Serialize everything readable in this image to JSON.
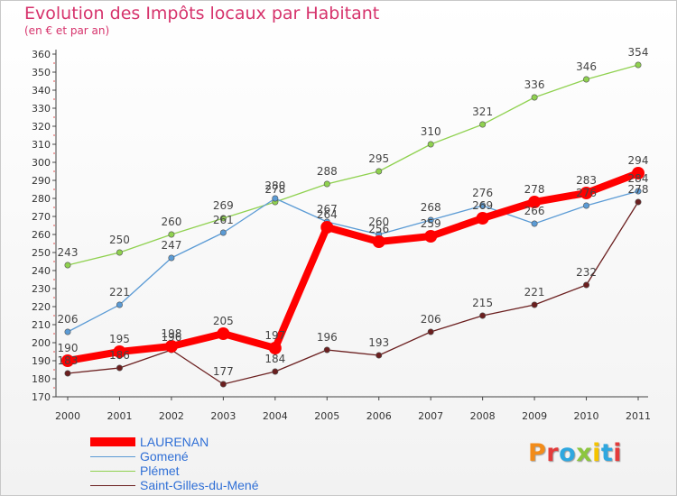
{
  "chart_data": {
    "type": "line",
    "title": "Evolution des Impôts locaux par Habitant",
    "subtitle": "(en € et par an)",
    "xlabel": "",
    "ylabel": "",
    "categories": [
      "2000",
      "2001",
      "2002",
      "2003",
      "2004",
      "2005",
      "2006",
      "2007",
      "2008",
      "2009",
      "2010",
      "2011"
    ],
    "ylim": [
      170,
      360
    ],
    "yticks": [
      170,
      180,
      190,
      200,
      210,
      220,
      230,
      240,
      250,
      260,
      270,
      280,
      290,
      300,
      310,
      320,
      330,
      340,
      350,
      360
    ],
    "grid": false,
    "legend_position": "bottom-left",
    "series": [
      {
        "name": "LAURENAN",
        "color": "#ff0000",
        "values": [
          190,
          195,
          198,
          205,
          197,
          264,
          256,
          259,
          269,
          278,
          283,
          294
        ]
      },
      {
        "name": "Gomené",
        "color": "#5b9bd5",
        "values": [
          206,
          221,
          247,
          261,
          280,
          267,
          260,
          268,
          276,
          266,
          276,
          284
        ]
      },
      {
        "name": "Plémet",
        "color": "#8fd14f",
        "values": [
          243,
          250,
          260,
          269,
          278,
          288,
          295,
          310,
          321,
          336,
          346,
          354
        ]
      },
      {
        "name": "Saint-Gilles-du-Mené",
        "color": "#6b1f1f",
        "values": [
          183,
          186,
          196,
          177,
          184,
          196,
          193,
          206,
          215,
          221,
          232,
          278
        ]
      }
    ]
  },
  "logo": {
    "letters": [
      "P",
      "r",
      "o",
      "x",
      "i",
      "t",
      "i"
    ],
    "colors": [
      "#f28c1a",
      "#e33b3b",
      "#2fa7df",
      "#8cc63f",
      "#f5c400",
      "#2fa7df",
      "#e33b3b"
    ]
  }
}
